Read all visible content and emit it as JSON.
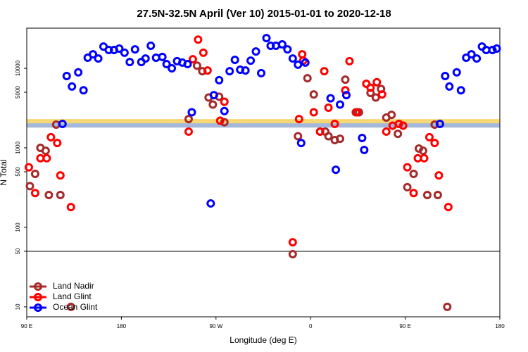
{
  "chart_data": {
    "type": "scatter",
    "title": "27.5N-32.5N April (Ver 10)   2015-01-01 to 2020-12-18",
    "x_label": "Longitude (deg E)",
    "y_label": "N Total",
    "log_y": true,
    "xlim": [
      90,
      540
    ],
    "ylim": [
      7.5,
      32000
    ],
    "xticks": [
      {
        "value": 90,
        "label": "90 E"
      },
      180,
      {
        "value": 270,
        "label": "90 W"
      },
      0,
      {
        "value": 450,
        "label": "90 E"
      },
      {
        "value": 540,
        "label": "180"
      }
    ],
    "yticks": [
      10,
      50,
      100,
      500,
      1000,
      5000,
      10000
    ],
    "hline": 50,
    "reference_band": {
      "range": [
        1800,
        2300
      ],
      "colors": [
        "#f7d774",
        "#a3b8dc"
      ]
    },
    "legend": "bottom-left",
    "series": [
      {
        "name": "Land Nadir",
        "color": "#a52a2a",
        "x": [
          93,
          98,
          103,
          108,
          111,
          118,
          122,
          132,
          244,
          252,
          257,
          263,
          267,
          273,
          278,
          343,
          348,
          357,
          363,
          369,
          374,
          377,
          383,
          388,
          393,
          403,
          406,
          417,
          422,
          427,
          432,
          437,
          443,
          452,
          458,
          463,
          467,
          471,
          478,
          481,
          490
        ],
        "values": [
          330,
          470,
          1000,
          920,
          255,
          1960,
          255,
          10,
          2300,
          10800,
          9200,
          4300,
          3500,
          4400,
          2100,
          46,
          1400,
          7500,
          4700,
          1600,
          1600,
          1400,
          1250,
          1300,
          7200,
          2800,
          2800,
          4900,
          4300,
          5500,
          2400,
          2600,
          1500,
          320,
          470,
          980,
          920,
          255,
          1960,
          255,
          10
        ]
      },
      {
        "name": "Land Glint",
        "color": "#ff0000",
        "x": [
          92,
          98,
          103,
          109,
          113,
          119,
          122,
          132,
          244,
          248,
          253,
          258,
          262,
          274,
          278,
          343,
          349,
          352,
          353,
          363,
          369,
          373,
          377,
          383,
          393,
          397,
          404,
          413,
          417,
          423,
          428,
          432,
          438,
          444,
          448,
          452,
          458,
          462,
          468,
          473,
          478,
          482,
          491
        ],
        "values": [
          570,
          270,
          740,
          740,
          1360,
          1150,
          450,
          180,
          1600,
          13000,
          23000,
          15700,
          9400,
          2200,
          3800,
          65,
          2300,
          15000,
          12500,
          2800,
          1600,
          9200,
          3200,
          2000,
          5300,
          12300,
          2800,
          6400,
          5700,
          6700,
          4700,
          1600,
          1900,
          2000,
          1900,
          570,
          270,
          740,
          740,
          1360,
          1150,
          450,
          180
        ]
      },
      {
        "name": "Ocean Glint",
        "color": "#0000ff",
        "x": [
          124,
          128,
          133,
          139,
          144,
          148,
          153,
          158,
          163,
          168,
          173,
          178,
          183,
          188,
          193,
          199,
          203,
          208,
          213,
          219,
          223,
          228,
          233,
          238,
          243,
          247,
          265,
          268,
          273,
          278,
          283,
          288,
          293,
          298,
          303,
          308,
          313,
          318,
          322,
          327,
          333,
          338,
          343,
          348,
          351,
          355,
          379,
          384,
          388,
          394,
          409,
          411,
          483,
          488,
          492,
          499,
          503,
          508,
          513,
          518,
          523,
          527,
          533,
          537
        ],
        "values": [
          2000,
          8000,
          5900,
          8900,
          5300,
          13600,
          15000,
          13300,
          18800,
          17000,
          17000,
          17700,
          15700,
          12000,
          17300,
          12000,
          13300,
          19200,
          13600,
          13900,
          11300,
          10000,
          12300,
          11800,
          11300,
          2800,
          200,
          4600,
          7100,
          2900,
          9200,
          12800,
          9600,
          9400,
          12500,
          16300,
          8700,
          24000,
          19200,
          19200,
          20000,
          17300,
          13300,
          11100,
          1150,
          11800,
          4200,
          530,
          3500,
          4600,
          1330,
          940,
          2000,
          8000,
          5900,
          8900,
          5300,
          13600,
          15000,
          13300,
          18800,
          17000,
          17000,
          17700
        ]
      }
    ]
  }
}
